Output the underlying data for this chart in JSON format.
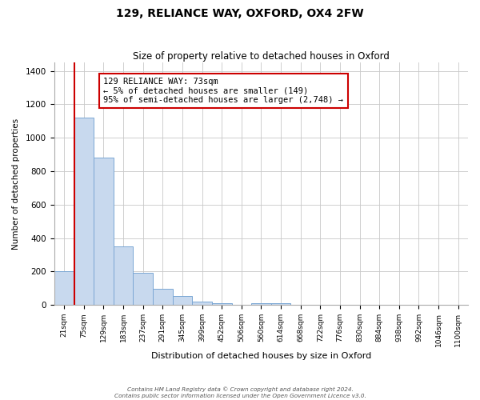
{
  "title": "129, RELIANCE WAY, OXFORD, OX4 2FW",
  "subtitle": "Size of property relative to detached houses in Oxford",
  "xlabel": "Distribution of detached houses by size in Oxford",
  "ylabel": "Number of detached properties",
  "bar_labels": [
    "21sqm",
    "75sqm",
    "129sqm",
    "183sqm",
    "237sqm",
    "291sqm",
    "345sqm",
    "399sqm",
    "452sqm",
    "506sqm",
    "560sqm",
    "614sqm",
    "668sqm",
    "722sqm",
    "776sqm",
    "830sqm",
    "884sqm",
    "938sqm",
    "992sqm",
    "1046sqm",
    "1100sqm"
  ],
  "bar_values": [
    200,
    1120,
    880,
    350,
    190,
    95,
    52,
    20,
    12,
    0,
    12,
    12,
    0,
    0,
    0,
    0,
    0,
    0,
    0,
    0,
    0
  ],
  "bar_color": "#c8d9ee",
  "bar_edge_color": "#7ba7d4",
  "vline_x_index": 1,
  "vline_color": "#cc0000",
  "annotation_text": "129 RELIANCE WAY: 73sqm\n← 5% of detached houses are smaller (149)\n95% of semi-detached houses are larger (2,748) →",
  "annotation_box_color": "#ffffff",
  "annotation_box_edge": "#cc0000",
  "ylim": [
    0,
    1450
  ],
  "yticks": [
    0,
    200,
    400,
    600,
    800,
    1000,
    1200,
    1400
  ],
  "footer_line1": "Contains HM Land Registry data © Crown copyright and database right 2024.",
  "footer_line2": "Contains public sector information licensed under the Open Government Licence v3.0.",
  "background_color": "#ffffff",
  "grid_color": "#c8c8c8"
}
